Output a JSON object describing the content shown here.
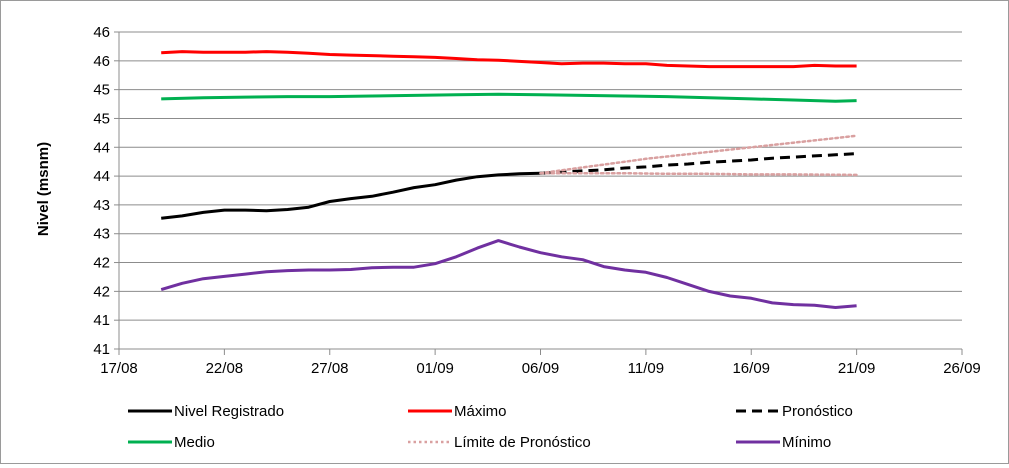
{
  "chart_data": {
    "type": "line",
    "ylabel": "Nivel (msnm)",
    "xlabel": "",
    "title": "",
    "grid": "horizontal",
    "legend_position": "bottom",
    "x_ticks": [
      "17/08",
      "22/08",
      "27/08",
      "01/09",
      "06/09",
      "11/09",
      "16/09",
      "21/09",
      "26/09"
    ],
    "y_ticks": [
      "41",
      "41",
      "42",
      "42",
      "43",
      "43",
      "44",
      "44",
      "45",
      "45",
      "46",
      "46"
    ],
    "ylim": [
      40.5,
      46.0
    ],
    "xlim_days": [
      0,
      40
    ],
    "series": [
      {
        "name": "Nivel Registrado",
        "color": "#000000",
        "dash": "solid",
        "x": [
          "19/08",
          "20/08",
          "21/08",
          "22/08",
          "23/08",
          "24/08",
          "25/08",
          "26/08",
          "27/08",
          "28/08",
          "29/08",
          "30/08",
          "31/08",
          "01/09",
          "02/09",
          "03/09",
          "04/09",
          "05/09",
          "06/09"
        ],
        "values": [
          42.77,
          42.81,
          42.87,
          42.91,
          42.91,
          42.9,
          42.92,
          42.96,
          43.06,
          43.11,
          43.15,
          43.22,
          43.3,
          43.35,
          43.43,
          43.49,
          43.52,
          43.54,
          43.55
        ]
      },
      {
        "name": "Máximo",
        "color": "#ff0000",
        "dash": "solid",
        "x": [
          "19/08",
          "20/08",
          "21/08",
          "22/08",
          "23/08",
          "24/08",
          "25/08",
          "26/08",
          "27/08",
          "28/08",
          "29/08",
          "30/08",
          "31/08",
          "01/09",
          "02/09",
          "03/09",
          "04/09",
          "05/09",
          "06/09",
          "07/09",
          "08/09",
          "09/09",
          "10/09",
          "11/09",
          "12/09",
          "13/09",
          "14/09",
          "15/09",
          "16/09",
          "17/09",
          "18/09",
          "19/09",
          "20/09",
          "21/09"
        ],
        "values": [
          45.64,
          45.66,
          45.65,
          45.65,
          45.65,
          45.66,
          45.65,
          45.63,
          45.61,
          45.6,
          45.59,
          45.58,
          45.57,
          45.56,
          45.54,
          45.52,
          45.51,
          45.49,
          45.47,
          45.45,
          45.46,
          45.46,
          45.45,
          45.45,
          45.42,
          45.41,
          45.4,
          45.4,
          45.4,
          45.4,
          45.4,
          45.42,
          45.41,
          45.41
        ]
      },
      {
        "name": "Pronóstico",
        "color": "#000000",
        "dash": "dashed",
        "x": [
          "06/09",
          "07/09",
          "08/09",
          "09/09",
          "10/09",
          "11/09",
          "12/09",
          "13/09",
          "14/09",
          "15/09",
          "16/09",
          "17/09",
          "18/09",
          "19/09",
          "20/09",
          "21/09"
        ],
        "values": [
          43.55,
          43.57,
          43.59,
          43.61,
          43.64,
          43.66,
          43.69,
          43.71,
          43.74,
          43.76,
          43.78,
          43.81,
          43.83,
          43.85,
          43.87,
          43.89
        ]
      },
      {
        "name": "Medio",
        "color": "#00b050",
        "dash": "solid",
        "x": [
          "19/08",
          "21/08",
          "23/08",
          "25/08",
          "27/08",
          "29/08",
          "31/08",
          "02/09",
          "04/09",
          "06/09",
          "08/09",
          "10/09",
          "12/09",
          "14/09",
          "16/09",
          "18/09",
          "20/09",
          "21/09"
        ],
        "values": [
          44.84,
          44.86,
          44.87,
          44.88,
          44.88,
          44.89,
          44.9,
          44.91,
          44.92,
          44.91,
          44.9,
          44.89,
          44.88,
          44.86,
          44.84,
          44.82,
          44.8,
          44.81
        ]
      },
      {
        "name": "Límite de Pronóstico",
        "color": "#d9a0a0",
        "dash": "dotted",
        "x": [
          "06/09",
          "07/09",
          "08/09",
          "09/09",
          "10/09",
          "11/09",
          "12/09",
          "13/09",
          "14/09",
          "15/09",
          "16/09",
          "17/09",
          "18/09",
          "19/09",
          "20/09",
          "21/09"
        ],
        "values": [
          43.55,
          43.6,
          43.65,
          43.7,
          43.75,
          43.8,
          43.84,
          43.88,
          43.92,
          43.96,
          44.0,
          44.04,
          44.08,
          44.12,
          44.16,
          44.2
        ]
      },
      {
        "name": "Límite de Pronóstico (inferior)",
        "legend": false,
        "color": "#d9a0a0",
        "dash": "dotted",
        "x": [
          "06/09",
          "08/09",
          "10/09",
          "12/09",
          "14/09",
          "16/09",
          "18/09",
          "21/09"
        ],
        "values": [
          43.55,
          43.55,
          43.55,
          43.54,
          43.54,
          43.53,
          43.53,
          43.52
        ]
      },
      {
        "name": "Mínimo",
        "color": "#7030a0",
        "dash": "solid",
        "x": [
          "19/08",
          "20/08",
          "21/08",
          "22/08",
          "23/08",
          "24/08",
          "25/08",
          "26/08",
          "27/08",
          "28/08",
          "29/08",
          "30/08",
          "31/08",
          "01/09",
          "02/09",
          "03/09",
          "04/09",
          "05/09",
          "06/09",
          "07/09",
          "08/09",
          "09/09",
          "10/09",
          "11/09",
          "12/09",
          "13/09",
          "14/09",
          "15/09",
          "16/09",
          "17/09",
          "18/09",
          "19/09",
          "20/09",
          "21/09"
        ],
        "values": [
          41.53,
          41.64,
          41.72,
          41.76,
          41.8,
          41.84,
          41.86,
          41.87,
          41.87,
          41.88,
          41.91,
          41.92,
          41.92,
          41.98,
          42.1,
          42.25,
          42.38,
          42.27,
          42.17,
          42.1,
          42.05,
          41.93,
          41.87,
          41.83,
          41.74,
          41.62,
          41.5,
          41.42,
          41.38,
          41.3,
          41.27,
          41.26,
          41.22,
          41.25
        ]
      }
    ]
  }
}
